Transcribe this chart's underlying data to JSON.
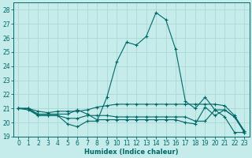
{
  "xlabel": "Humidex (Indice chaleur)",
  "bg_color": "#c5ecea",
  "grid_color": "#aad8d5",
  "line_color": "#006868",
  "xlim": [
    -0.5,
    23.5
  ],
  "ylim": [
    19,
    28.5
  ],
  "yticks": [
    19,
    20,
    21,
    22,
    23,
    24,
    25,
    26,
    27,
    28
  ],
  "xticks": [
    0,
    1,
    2,
    3,
    4,
    5,
    6,
    7,
    8,
    9,
    10,
    11,
    12,
    13,
    14,
    15,
    16,
    17,
    18,
    19,
    20,
    21,
    22,
    23
  ],
  "line1_x": [
    0,
    1,
    2,
    3,
    4,
    5,
    6,
    7,
    8,
    9,
    10,
    11,
    12,
    13,
    14,
    15,
    16,
    17,
    18,
    19,
    20,
    21,
    22,
    23
  ],
  "line1_y": [
    21.0,
    20.9,
    20.5,
    20.5,
    20.5,
    19.9,
    19.7,
    20.1,
    20.1,
    21.8,
    24.3,
    25.7,
    25.5,
    26.1,
    27.8,
    27.3,
    25.2,
    21.5,
    21.0,
    21.8,
    20.9,
    20.4,
    19.3,
    19.3
  ],
  "line2_x": [
    0,
    1,
    2,
    3,
    4,
    5,
    6,
    7,
    8,
    9,
    10,
    11,
    12,
    13,
    14,
    15,
    16,
    17,
    18,
    19,
    20,
    21,
    22,
    23
  ],
  "line2_y": [
    21.0,
    21.0,
    20.8,
    20.7,
    20.8,
    20.8,
    20.8,
    20.9,
    21.1,
    21.2,
    21.3,
    21.3,
    21.3,
    21.3,
    21.3,
    21.3,
    21.3,
    21.3,
    21.3,
    21.3,
    21.3,
    21.2,
    20.5,
    19.4
  ],
  "line3_x": [
    0,
    1,
    2,
    3,
    4,
    5,
    6,
    7,
    8,
    9,
    10,
    11,
    12,
    13,
    14,
    15,
    16,
    17,
    18,
    19,
    20,
    21,
    22,
    23
  ],
  "line3_y": [
    21.0,
    21.0,
    20.5,
    20.5,
    20.5,
    20.3,
    20.3,
    20.5,
    20.5,
    20.5,
    20.4,
    20.4,
    20.4,
    20.4,
    20.4,
    20.4,
    20.4,
    20.4,
    20.1,
    20.1,
    20.9,
    20.9,
    20.4,
    19.3
  ],
  "line4_x": [
    0,
    1,
    2,
    3,
    4,
    5,
    6,
    7,
    8,
    9,
    10,
    11,
    12,
    13,
    14,
    15,
    16,
    17,
    18,
    19,
    20,
    21,
    22,
    23
  ],
  "line4_y": [
    21.0,
    21.0,
    20.6,
    20.6,
    20.6,
    20.6,
    20.9,
    20.6,
    20.2,
    20.2,
    20.2,
    20.2,
    20.2,
    20.2,
    20.2,
    20.2,
    20.2,
    20.0,
    19.9,
    21.1,
    20.5,
    20.9,
    20.4,
    19.4
  ]
}
